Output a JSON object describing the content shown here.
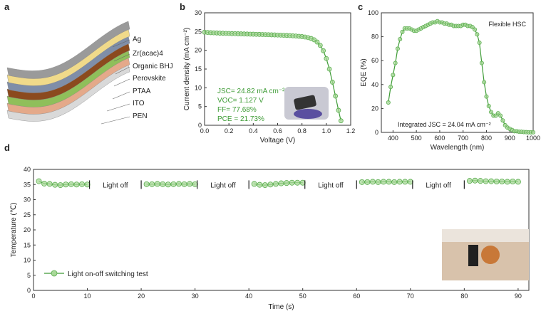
{
  "panels": {
    "a": "a",
    "b": "b",
    "c": "c",
    "d": "d"
  },
  "layers": {
    "labels": [
      "Ag",
      "Zr(acac)4",
      "Organic BHJ",
      "Perovskite",
      "PTAA",
      "ITO",
      "PEN"
    ],
    "colors": [
      "#9a9a9a",
      "#f0da8a",
      "#7f8ea8",
      "#8b4a1e",
      "#8fbf5a",
      "#e4a98a",
      "#d9d9d9"
    ]
  },
  "colors": {
    "line": "#3d9b35",
    "marker_fill": "#a8d898",
    "marker_edge": "#5aad4e"
  },
  "chart_data": [
    {
      "id": "b",
      "type": "line",
      "title": "",
      "xlabel": "Voltage (V)",
      "ylabel": "Current density (mA cm⁻²)",
      "xlim": [
        0.0,
        1.2
      ],
      "ylim": [
        0,
        30
      ],
      "xticks": [
        "0.0",
        "0.2",
        "0.4",
        "0.6",
        "0.8",
        "1.0",
        "1.2"
      ],
      "yticks": [
        "0",
        "5",
        "10",
        "15",
        "20",
        "25",
        "30"
      ],
      "series": [
        {
          "x": [
            0,
            0.025,
            0.05,
            0.075,
            0.1,
            0.125,
            0.15,
            0.175,
            0.2,
            0.225,
            0.25,
            0.275,
            0.3,
            0.325,
            0.35,
            0.375,
            0.4,
            0.425,
            0.45,
            0.475,
            0.5,
            0.525,
            0.55,
            0.575,
            0.6,
            0.625,
            0.65,
            0.675,
            0.7,
            0.725,
            0.75,
            0.775,
            0.8,
            0.825,
            0.85,
            0.875,
            0.9,
            0.925,
            0.95,
            0.975,
            1.0,
            1.025,
            1.05,
            1.075,
            1.1,
            1.12
          ],
          "y": [
            24.82,
            24.75,
            24.7,
            24.66,
            24.62,
            24.58,
            24.55,
            24.52,
            24.49,
            24.46,
            24.44,
            24.41,
            24.39,
            24.36,
            24.34,
            24.31,
            24.29,
            24.26,
            24.24,
            24.21,
            24.19,
            24.16,
            24.13,
            24.1,
            24.07,
            24.04,
            24.0,
            23.96,
            23.92,
            23.87,
            23.81,
            23.74,
            23.65,
            23.54,
            23.38,
            23.15,
            22.8,
            22.2,
            21.3,
            19.9,
            17.8,
            15.0,
            11.5,
            7.8,
            4.0,
            1.2
          ]
        }
      ],
      "annotations": [
        "JSC= 24.82 mA cm⁻²",
        "VOC= 1.127 V",
        "FF= 77.68%",
        "PCE = 21.73%"
      ]
    },
    {
      "id": "c",
      "type": "line",
      "title": "Flexible HSC",
      "xlabel": "Wavelength (nm)",
      "ylabel": "EQE (%)",
      "xlim": [
        350,
        1000
      ],
      "ylim": [
        0,
        100
      ],
      "xticks": [
        "400",
        "500",
        "600",
        "700",
        "800",
        "900",
        "1000"
      ],
      "yticks": [
        "0",
        "20",
        "40",
        "60",
        "80",
        "100"
      ],
      "series": [
        {
          "x": [
            380,
            390,
            400,
            410,
            420,
            430,
            440,
            450,
            460,
            470,
            480,
            490,
            500,
            510,
            520,
            530,
            540,
            550,
            560,
            570,
            580,
            590,
            600,
            610,
            620,
            630,
            640,
            650,
            660,
            670,
            680,
            690,
            700,
            710,
            720,
            730,
            740,
            750,
            760,
            770,
            780,
            790,
            800,
            810,
            820,
            830,
            840,
            850,
            860,
            870,
            880,
            890,
            900,
            910,
            920,
            930,
            940,
            950,
            960,
            970,
            980,
            990,
            1000
          ],
          "y": [
            25,
            38,
            48,
            58,
            70,
            78,
            84,
            87,
            87,
            87,
            86,
            85,
            85,
            86,
            87,
            88,
            89,
            90,
            91,
            92,
            92,
            93,
            92,
            92,
            91,
            91,
            90,
            90,
            89,
            89,
            89,
            89,
            90,
            90,
            89,
            89,
            88,
            86,
            82,
            75,
            58,
            42,
            30,
            22,
            17,
            14,
            14,
            16,
            14,
            10,
            6,
            4,
            3,
            2,
            1,
            1,
            0.5,
            0.5,
            0.3,
            0.2,
            0.1,
            0.1,
            0.1
          ]
        }
      ],
      "annotations": [
        "Integrated JSC = 24.04 mA cm⁻²"
      ]
    },
    {
      "id": "d",
      "type": "line",
      "title": "",
      "xlabel": "Time (s)",
      "ylabel": "Temperature (℃)",
      "xlim": [
        0,
        92
      ],
      "ylim": [
        0,
        40
      ],
      "xticks": [
        "0",
        "10",
        "20",
        "30",
        "40",
        "50",
        "60",
        "70",
        "80",
        "90"
      ],
      "yticks": [
        "0",
        "5",
        "10",
        "15",
        "20",
        "25",
        "30",
        "35",
        "40"
      ],
      "legend": "Light on-off switching test",
      "legend_position": "bottom-left",
      "segments": [
        {
          "x": [
            1,
            2,
            3,
            4,
            5,
            6,
            7,
            8,
            9,
            10
          ],
          "y": [
            36.1,
            35.3,
            35.2,
            34.9,
            34.8,
            35.0,
            35.1,
            35.0,
            35.1,
            35.0
          ]
        },
        {
          "x": [
            21,
            22,
            23,
            24,
            25,
            26,
            27,
            28,
            29,
            30
          ],
          "y": [
            35.1,
            35.1,
            35.2,
            35.1,
            35.0,
            35.1,
            35.2,
            35.1,
            35.2,
            35.1
          ]
        },
        {
          "x": [
            41,
            42,
            43,
            44,
            45,
            46,
            47,
            48,
            49,
            50
          ],
          "y": [
            35.2,
            34.9,
            34.8,
            35.0,
            35.2,
            35.4,
            35.5,
            35.6,
            35.6,
            35.6
          ]
        },
        {
          "x": [
            61,
            62,
            63,
            64,
            65,
            66,
            67,
            68,
            69,
            70
          ],
          "y": [
            35.8,
            35.8,
            35.9,
            35.8,
            35.9,
            35.9,
            35.8,
            35.9,
            35.9,
            35.9
          ]
        },
        {
          "x": [
            81,
            82,
            83,
            84,
            85,
            86,
            87,
            88,
            89,
            90
          ],
          "y": [
            36.2,
            36.3,
            36.2,
            36.1,
            36.1,
            36.0,
            36.0,
            35.9,
            36.0,
            35.9
          ]
        }
      ],
      "gap_labels": [
        "Light off",
        "Light off",
        "Light off",
        "Light off"
      ]
    }
  ]
}
